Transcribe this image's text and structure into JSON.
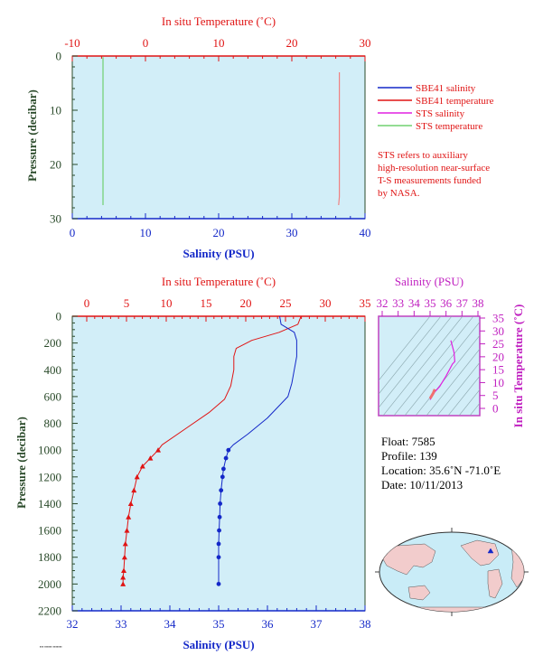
{
  "colors": {
    "panel_bg": "#d2eef8",
    "temperature": "#e01414",
    "salinity": "#1428c8",
    "sts_salinity": "#e020e0",
    "sts_temperature": "#70d070",
    "axis_dark": "#2a4a2a",
    "ts_frame": "#c040c0"
  },
  "top_panel": {
    "top_axis_label": "In situ Temperature (˚C)",
    "bottom_axis_label": "Salinity (PSU)",
    "y_label": "Pressure (decibar)",
    "top_ticks": [
      "-10",
      "0",
      "10",
      "20",
      "30"
    ],
    "bottom_ticks": [
      "0",
      "10",
      "20",
      "30",
      "40"
    ],
    "y_ticks": [
      "0",
      "10",
      "20",
      "30"
    ],
    "legend": [
      {
        "label": "SBE41 salinity",
        "color": "#1428c8"
      },
      {
        "label": "SBE41 temperature",
        "color": "#e01414"
      },
      {
        "label": "STS salinity",
        "color": "#e020e0"
      },
      {
        "label": "STS temperature",
        "color": "#70d070"
      }
    ],
    "note_lines": [
      "STS refers to auxiliary",
      "high-resolution near-surface",
      "T-S measurements funded",
      "by NASA."
    ]
  },
  "main_panel": {
    "top_axis_label": "In situ Temperature (˚C)",
    "bottom_axis_label": "Salinity (PSU)",
    "y_label": "Pressure (decibar)",
    "top_ticks": [
      "0",
      "5",
      "10",
      "15",
      "20",
      "25",
      "30",
      "35"
    ],
    "bottom_ticks": [
      "32",
      "33",
      "34",
      "35",
      "36",
      "37",
      "38"
    ],
    "y_ticks": [
      "0",
      "200",
      "400",
      "600",
      "800",
      "1000",
      "1200",
      "1400",
      "1600",
      "1800",
      "2000",
      "2200"
    ]
  },
  "ts_panel": {
    "top_axis_label": "Salinity (PSU)",
    "right_axis_label": "In situ Temperature (˚C)",
    "top_ticks": [
      "32",
      "33",
      "34",
      "35",
      "36",
      "37",
      "38"
    ],
    "right_ticks": [
      "0",
      "5",
      "10",
      "15",
      "20",
      "25",
      "30",
      "35"
    ]
  },
  "float_info": {
    "float": "Float:  7585",
    "profile": "Profile:  139",
    "location": "Location:  35.6˚N  -71.0˚E",
    "date": "Date:  10/11/2013"
  },
  "chart_data": [
    {
      "type": "line",
      "panel": "near-surface profile",
      "xlabel_top": "In situ Temperature (˚C)",
      "xlabel_bottom": "Salinity (PSU)",
      "ylabel": "Pressure (decibar)",
      "xlim_temperature": [
        -10,
        30
      ],
      "xlim_salinity": [
        0,
        40
      ],
      "ylim": [
        0,
        30
      ],
      "y_inverted": true,
      "series": [
        {
          "name": "STS temperature",
          "axis": "temperature",
          "x": [
            -5.8,
            -5.8
          ],
          "y": [
            0.2,
            27.5
          ]
        },
        {
          "name": "STS salinity",
          "axis": "salinity",
          "x": [
            36.5,
            36.5,
            36.4
          ],
          "y": [
            3,
            26,
            27.5
          ]
        }
      ]
    },
    {
      "type": "line",
      "panel": "full-depth profile",
      "xlabel_top": "In situ Temperature (˚C)",
      "xlabel_bottom": "Salinity (PSU)",
      "ylabel": "Pressure (decibar)",
      "xlim_temperature": [
        -2.5,
        35
      ],
      "xlim_salinity": [
        32,
        38
      ],
      "ylim": [
        0,
        2200
      ],
      "y_inverted": true,
      "series": [
        {
          "name": "SBE41 temperature",
          "axis": "temperature",
          "x": [
            26.8,
            26.4,
            24.0,
            20.5,
            18.5,
            18.2,
            18.2,
            17.8,
            17.0,
            15.0,
            12.0,
            9.0,
            8.5,
            7.5,
            6.5,
            5.8,
            5.4,
            5.0,
            4.7,
            4.5,
            4.3,
            4.2,
            4.1,
            4.0,
            4.0
          ],
          "y": [
            0,
            60,
            120,
            180,
            240,
            300,
            400,
            520,
            620,
            720,
            840,
            960,
            1000,
            1060,
            1120,
            1200,
            1300,
            1400,
            1500,
            1600,
            1700,
            1800,
            1900,
            1950,
            2000
          ]
        },
        {
          "name": "SBE41 salinity",
          "axis": "salinity",
          "x": [
            36.25,
            36.28,
            36.55,
            36.6,
            36.6,
            36.55,
            36.5,
            36.42,
            36.0,
            35.6,
            35.3,
            35.2,
            35.15,
            35.1,
            35.08,
            35.05,
            35.03,
            35.02,
            35.01,
            35.0,
            35.0,
            35.0
          ],
          "y": [
            0,
            60,
            120,
            180,
            300,
            400,
            500,
            600,
            760,
            880,
            960,
            1000,
            1060,
            1140,
            1200,
            1300,
            1400,
            1500,
            1600,
            1700,
            1800,
            2000
          ]
        }
      ]
    },
    {
      "type": "line",
      "panel": "T-S diagram",
      "xlabel": "Salinity (PSU)",
      "ylabel": "In situ Temperature (˚C)",
      "xlim": [
        32,
        38
      ],
      "ylim": [
        -1,
        35
      ],
      "series": [
        {
          "name": "SBE41",
          "x": [
            35.0,
            35.1,
            35.3,
            35.6,
            36.0,
            36.4,
            36.55,
            36.5,
            36.3
          ],
          "y": [
            4.0,
            5.0,
            7.0,
            9.0,
            13.0,
            17.5,
            18.5,
            22.0,
            26.5
          ]
        },
        {
          "name": "STS",
          "x": [
            35.0,
            35.1,
            35.2,
            35.3
          ],
          "y": [
            4.5,
            5.5,
            6.5,
            8.0
          ]
        }
      ]
    }
  ],
  "map": {
    "marker_location": "35.6˚N -71.0˚E"
  }
}
